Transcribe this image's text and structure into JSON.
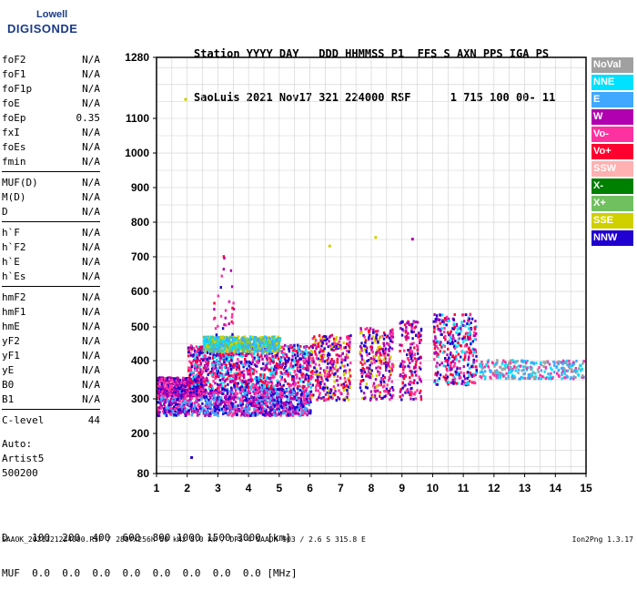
{
  "logo": {
    "line1": "Lowell",
    "line2": "DIGISONDE"
  },
  "header": {
    "line1": "Station YYYY DAY   DDD HHMMSS P1  FFS S AXN PPS IGA PS",
    "line2": "SaoLuis 2021 Nov17 321 224000 RSF      1 715 100 00- 11"
  },
  "params": {
    "group1": [
      {
        "k": "foF2",
        "v": "N/A"
      },
      {
        "k": "foF1",
        "v": "N/A"
      },
      {
        "k": "foF1p",
        "v": "N/A"
      },
      {
        "k": "foE",
        "v": "N/A"
      },
      {
        "k": "foEp",
        "v": "0.35"
      },
      {
        "k": "fxI",
        "v": "N/A"
      },
      {
        "k": "foEs",
        "v": "N/A"
      },
      {
        "k": "fmin",
        "v": "N/A"
      }
    ],
    "group2": [
      {
        "k": "MUF(D)",
        "v": "N/A"
      },
      {
        "k": "M(D)",
        "v": "N/A"
      },
      {
        "k": "D",
        "v": "N/A"
      }
    ],
    "group3": [
      {
        "k": "h`F",
        "v": "N/A"
      },
      {
        "k": "h`F2",
        "v": "N/A"
      },
      {
        "k": "h`E",
        "v": "N/A"
      },
      {
        "k": "h`Es",
        "v": "N/A"
      }
    ],
    "group4": [
      {
        "k": "hmF2",
        "v": "N/A"
      },
      {
        "k": "hmF1",
        "v": "N/A"
      },
      {
        "k": "hmE",
        "v": "N/A"
      },
      {
        "k": "yF2",
        "v": "N/A"
      },
      {
        "k": "yF1",
        "v": "N/A"
      },
      {
        "k": "yE",
        "v": "N/A"
      },
      {
        "k": "B0",
        "v": "N/A"
      },
      {
        "k": "B1",
        "v": "N/A"
      }
    ],
    "group5": [
      {
        "k": "C-level",
        "v": "44"
      }
    ]
  },
  "auto": {
    "line1": "Auto:",
    "line2": "Artist5",
    "line3": "500200"
  },
  "dtable": {
    "line1": "D    100  200  400  600  800 1000 1500 3000 [km]",
    "line2": "MUF  0.0  0.0  0.0  0.0  0.0  0.0  0.0  0.0 [MHz]"
  },
  "footer": "SAAOK_2021321224000.RSF / 280fx256h 50 kHz 5.0 km / DPS-4 SAAOK 903 / 2.6 S 315.8 E",
  "version": "Ion2Png 1.3.17",
  "legend": [
    {
      "label": "NoVal",
      "color": "#a0a0a0"
    },
    {
      "label": "NNE",
      "color": "#00e0ff"
    },
    {
      "label": "E",
      "color": "#40a8ff"
    },
    {
      "label": "W",
      "color": "#b000b0"
    },
    {
      "label": "Vo-",
      "color": "#ff30a0"
    },
    {
      "label": "Vo+",
      "color": "#ff0030"
    },
    {
      "label": "SSW",
      "color": "#ffb0b0"
    },
    {
      "label": "X-",
      "color": "#008000"
    },
    {
      "label": "X+",
      "color": "#70c060"
    },
    {
      "label": "SSE",
      "color": "#d0d000"
    },
    {
      "label": "NNW",
      "color": "#2000d0"
    }
  ],
  "chart_data": {
    "type": "scatter",
    "title": "",
    "xlabel": "",
    "ylabel": "",
    "xlim": [
      1,
      15
    ],
    "ylim": [
      80,
      1280
    ],
    "xticks": [
      1,
      2,
      3,
      4,
      5,
      6,
      7,
      8,
      9,
      10,
      11,
      12,
      13,
      14,
      15
    ],
    "yticks": [
      80,
      200,
      300,
      400,
      500,
      600,
      700,
      800,
      900,
      1000,
      1100,
      1280
    ],
    "grid": true,
    "note_scale": "virtual height axis is nonlinear (expanded below ~300 km)",
    "clusters": [
      {
        "name": "low trace",
        "x_range": [
          1.0,
          6.0
        ],
        "h_range": [
          255,
          330
        ],
        "color_mix": [
          "#2000d0",
          "#b000b0",
          "#ff30a0",
          "#40a8ff"
        ]
      },
      {
        "name": "F trace 1",
        "x_range": [
          1.0,
          2.5
        ],
        "h_range": [
          310,
          360
        ],
        "color_mix": [
          "#2000d0",
          "#b000b0",
          "#ff30a0"
        ]
      },
      {
        "name": "F trace 2",
        "x_range": [
          2.0,
          6.0
        ],
        "h_range": [
          330,
          450
        ],
        "color_mix": [
          "#b000b0",
          "#ff30a0",
          "#ff0030",
          "#2000d0",
          "#00e0ff"
        ]
      },
      {
        "name": "upper F",
        "x_range": [
          2.5,
          5.0
        ],
        "h_range": [
          430,
          475
        ],
        "color_mix": [
          "#00e0ff",
          "#40a8ff",
          "#d0d000",
          "#70c060"
        ]
      },
      {
        "name": "band 6-7.3",
        "x_range": [
          6.0,
          7.3
        ],
        "h_range": [
          300,
          480
        ],
        "color_mix": [
          "#b000b0",
          "#ff30a0",
          "#ff0030",
          "#d0d000",
          "#2000d0"
        ]
      },
      {
        "name": "band 7.6-8.7",
        "x_range": [
          7.6,
          8.7
        ],
        "h_range": [
          300,
          500
        ],
        "color_mix": [
          "#b000b0",
          "#ff30a0",
          "#ff0030",
          "#2000d0",
          "#d0d000"
        ]
      },
      {
        "name": "band 8.9-9.6",
        "x_range": [
          8.9,
          9.6
        ],
        "h_range": [
          300,
          520
        ],
        "color_mix": [
          "#b000b0",
          "#ff30a0",
          "#ff0030",
          "#2000d0"
        ]
      },
      {
        "name": "band 10-11.4",
        "x_range": [
          10.0,
          11.4
        ],
        "h_range": [
          340,
          540
        ],
        "color_mix": [
          "#b000b0",
          "#ff30a0",
          "#ff0030",
          "#2000d0",
          "#00e0ff"
        ]
      },
      {
        "name": "right trace",
        "x_range": [
          11.5,
          14.9
        ],
        "h_range": [
          355,
          405
        ],
        "color_mix": [
          "#00e0ff",
          "#40a8ff",
          "#a0a0a0",
          "#ff30a0"
        ]
      },
      {
        "name": "spikes",
        "x_range": [
          2.8,
          3.6
        ],
        "h_range": [
          480,
          730
        ],
        "color_mix": [
          "#b000b0",
          "#ff0030",
          "#ff30a0",
          "#2000d0"
        ]
      }
    ],
    "outliers": [
      {
        "x": 1.9,
        "h": 1160,
        "color": "#d0d000"
      },
      {
        "x": 2.1,
        "h": 132,
        "color": "#2000d0"
      },
      {
        "x": 8.1,
        "h": 760,
        "color": "#d0d000"
      },
      {
        "x": 9.3,
        "h": 755,
        "color": "#b000b0"
      },
      {
        "x": 6.6,
        "h": 735,
        "color": "#d0d000"
      }
    ]
  }
}
